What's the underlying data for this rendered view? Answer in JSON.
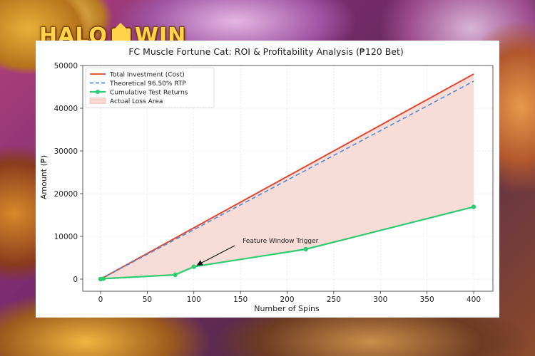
{
  "brand": {
    "name_left": "HALO",
    "name_right": "WIN"
  },
  "colors": {
    "investment": "#e0462f",
    "rtp": "#4a8fd8",
    "returns": "#2ecc71",
    "loss_fill": "#f7d6d0"
  },
  "chart_data": {
    "type": "line",
    "title": "FC Muscle Fortune Cat: ROI & Profitability Analysis (₱120 Bet)",
    "xlabel": "Number of Spins",
    "ylabel": "Amount (₱)",
    "xlim": [
      0,
      400
    ],
    "ylim": [
      0,
      50000
    ],
    "xticks": [
      0,
      50,
      100,
      150,
      200,
      250,
      300,
      350,
      400
    ],
    "yticks": [
      0,
      10000,
      20000,
      30000,
      40000,
      50000
    ],
    "grid": true,
    "legend_position": "top-left",
    "series": [
      {
        "name": "Total Investment (Cost)",
        "style": "solid",
        "x": [
          0,
          400
        ],
        "y": [
          0,
          48000
        ]
      },
      {
        "name": "Theoretical 96.50% RTP",
        "style": "dashed",
        "x": [
          0,
          400
        ],
        "y": [
          0,
          46320
        ]
      },
      {
        "name": "Cumulative Test Returns",
        "style": "solid-markers",
        "x": [
          0,
          3,
          80,
          100,
          220,
          400
        ],
        "y": [
          0,
          100,
          1000,
          2900,
          7000,
          16900
        ]
      }
    ],
    "fill": {
      "name": "Actual Loss Area",
      "between": [
        "Total Investment (Cost)",
        "Cumulative Test Returns"
      ]
    },
    "annotations": [
      {
        "text": "Feature Window Trigger",
        "x": 100,
        "y": 2900,
        "text_x": 150,
        "text_y": 8500
      }
    ]
  }
}
